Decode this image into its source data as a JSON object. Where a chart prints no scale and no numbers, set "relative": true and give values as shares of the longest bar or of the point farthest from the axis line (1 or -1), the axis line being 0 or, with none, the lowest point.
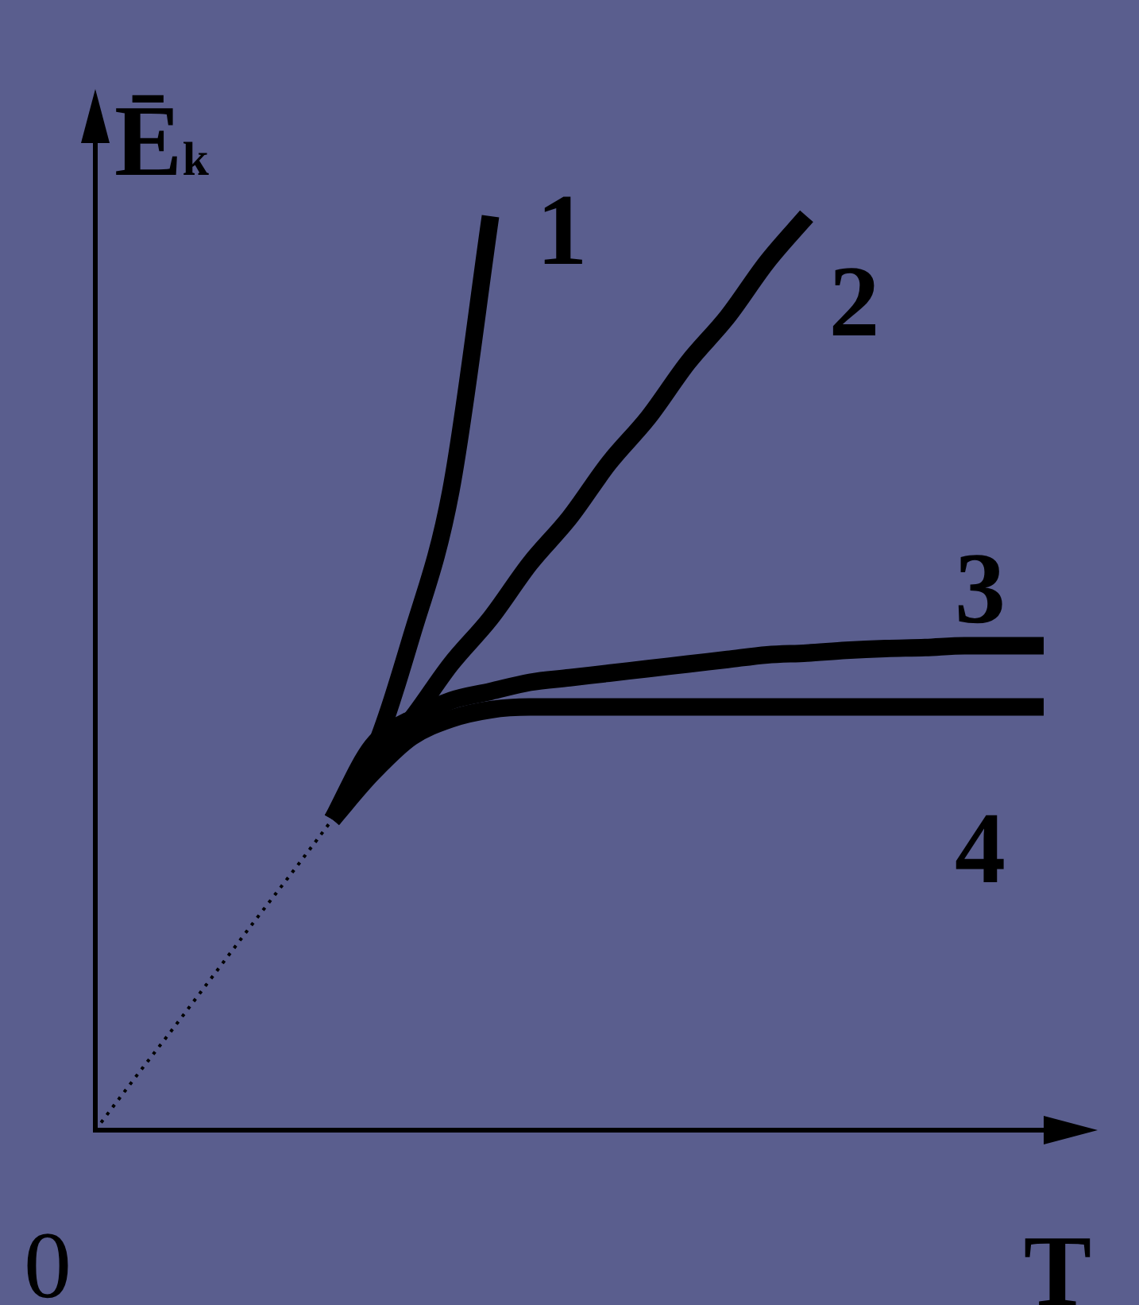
{
  "chart_data": {
    "type": "line",
    "relative": true,
    "xlabel": "T",
    "ylabel": "Ē$_{k}$",
    "annotations": [
      "0"
    ],
    "grid": false,
    "legend": false,
    "marker": "none",
    "categories": [
      null,
      null,
      null,
      null,
      null,
      null,
      null,
      null,
      null,
      null,
      null,
      null,
      null,
      null,
      null,
      null,
      null,
      null,
      null,
      null,
      null,
      null,
      null,
      null,
      null
    ],
    "series": [
      {
        "name": "1",
        "color": "#000000",
        "values": [
          null,
          null,
          null,
          null,
          null,
          null,
          0.34,
          0.41,
          0.54,
          0.7,
          1.0,
          null,
          null,
          null,
          null,
          null,
          null,
          null,
          null,
          null,
          null,
          null,
          null,
          null,
          null
        ]
      },
      {
        "name": "2",
        "color": "#000000",
        "values": [
          null,
          null,
          null,
          null,
          null,
          null,
          0.34,
          0.4,
          0.45,
          0.51,
          0.56,
          0.62,
          0.67,
          0.73,
          0.78,
          0.84,
          0.89,
          0.95,
          1.0,
          null,
          null,
          null,
          null,
          null,
          null
        ]
      },
      {
        "name": "3",
        "color": "#000000",
        "values": [
          null,
          null,
          null,
          null,
          null,
          null,
          0.34,
          0.42,
          0.45,
          0.47,
          0.48,
          0.49,
          0.495,
          0.5,
          0.505,
          0.51,
          0.515,
          0.52,
          0.522,
          0.525,
          0.527,
          0.528,
          0.53,
          0.53,
          0.53
        ]
      },
      {
        "name": "4",
        "color": "#000000",
        "values": [
          null,
          null,
          null,
          null,
          null,
          null,
          0.34,
          0.39,
          0.43,
          0.45,
          0.46,
          0.463,
          0.463,
          0.463,
          0.463,
          0.463,
          0.463,
          0.463,
          0.463,
          0.463,
          0.463,
          0.463,
          0.463,
          0.463,
          0.463
        ]
      },
      {
        "color": "#000000",
        "line_style": "dotted",
        "values": [
          0,
          0.057,
          0.113,
          0.17,
          0.227,
          0.283,
          0.34,
          null,
          null,
          null,
          null,
          null,
          null,
          null,
          null,
          null,
          null,
          null,
          null,
          null,
          null,
          null,
          null,
          null,
          null
        ]
      }
    ]
  }
}
